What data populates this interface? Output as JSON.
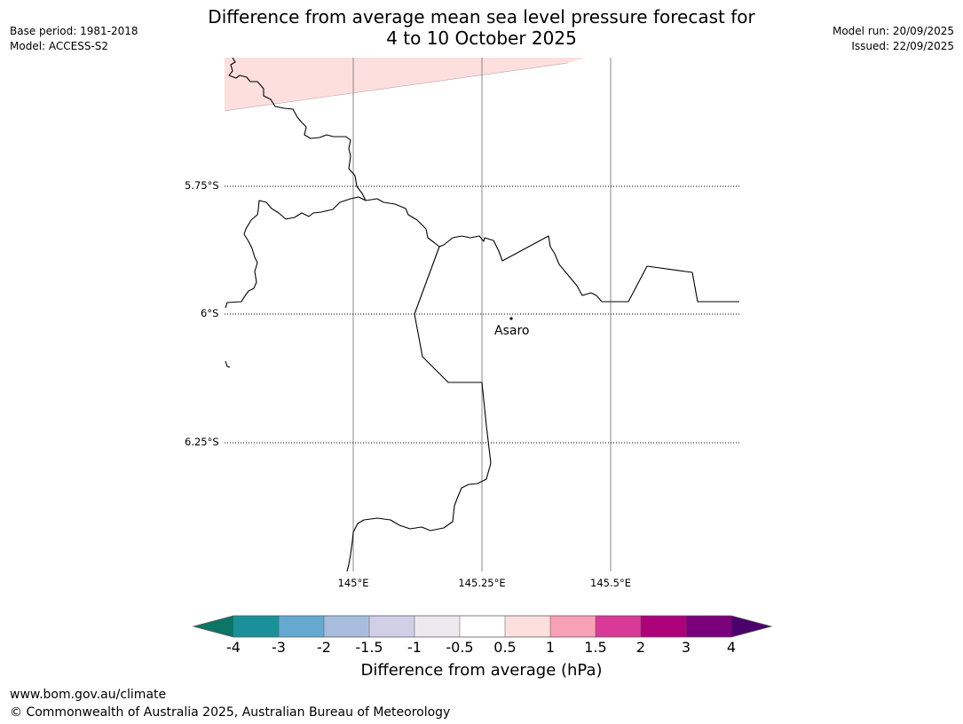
{
  "header": {
    "title_line1": "Difference from average mean sea level pressure forecast for",
    "title_line2": "4 to 10 October 2025",
    "base_period": "Base period: 1981-2018",
    "model": "Model: ACCESS-S2",
    "model_run": "Model run: 20/09/2025",
    "issued": "Issued: 22/09/2025"
  },
  "map": {
    "lat_labels": [
      "5.75°S",
      "6°S",
      "6.25°S"
    ],
    "lon_labels": [
      "145°E",
      "145.25°E",
      "145.5°E"
    ],
    "place": {
      "name": "Asaro",
      "lat": -6.01,
      "lon": 145.3
    },
    "anomaly_fill_color": "#fddfdd"
  },
  "colorbar": {
    "label": "Difference from average (hPa)",
    "ticks": [
      "-4",
      "-3",
      "-2",
      "-1.5",
      "-1",
      "-0.5",
      "0.5",
      "1",
      "1.5",
      "2",
      "3",
      "4"
    ],
    "colors": [
      "#0d7565",
      "#1a9199",
      "#65a9d1",
      "#a8bddd",
      "#d1cfe6",
      "#ebe9ee",
      "#ffffff",
      "#fddfdd",
      "#f8a0b5",
      "#d93a97",
      "#ac007a",
      "#7b007b",
      "#4c006b"
    ]
  },
  "footer": {
    "url": "www.bom.gov.au/climate",
    "copyright": "© Commonwealth of Australia 2025, Australian Bureau of Meteorology"
  }
}
